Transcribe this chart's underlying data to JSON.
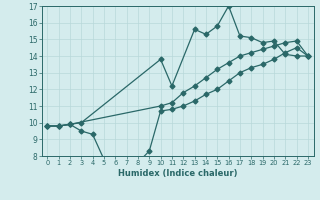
{
  "xlabel": "Humidex (Indice chaleur)",
  "bg_color": "#d4eced",
  "grid_color": "#b8d8da",
  "line_color": "#2a6868",
  "xlim": [
    -0.5,
    23.5
  ],
  "ylim": [
    8,
    17
  ],
  "xticks": [
    0,
    1,
    2,
    3,
    4,
    5,
    6,
    7,
    8,
    9,
    10,
    11,
    12,
    13,
    14,
    15,
    16,
    17,
    18,
    19,
    20,
    21,
    22,
    23
  ],
  "yticks": [
    8,
    9,
    10,
    11,
    12,
    13,
    14,
    15,
    16,
    17
  ],
  "line1_x": [
    0,
    1,
    2,
    3,
    10,
    11,
    13,
    14,
    15,
    16,
    17,
    18,
    19,
    20,
    21,
    22,
    23
  ],
  "line1_y": [
    9.8,
    9.8,
    9.9,
    10.0,
    13.8,
    12.2,
    15.6,
    15.3,
    15.8,
    17.0,
    15.2,
    15.1,
    14.8,
    14.9,
    14.1,
    14.0,
    14.0
  ],
  "line2_x": [
    0,
    1,
    2,
    10,
    11,
    12,
    13,
    14,
    15,
    16,
    17,
    18,
    19,
    20,
    21,
    22,
    23
  ],
  "line2_y": [
    9.8,
    9.8,
    9.9,
    11.0,
    11.2,
    11.8,
    12.2,
    12.7,
    13.2,
    13.6,
    14.0,
    14.2,
    14.4,
    14.6,
    14.8,
    14.9,
    14.0
  ],
  "line3_x": [
    0,
    1,
    2,
    3,
    4,
    5,
    6,
    7,
    8,
    9,
    10,
    11,
    12,
    13,
    14,
    15,
    16,
    17,
    18,
    19,
    20,
    21,
    22,
    23
  ],
  "line3_y": [
    9.8,
    9.8,
    9.9,
    9.5,
    9.3,
    7.8,
    7.5,
    7.5,
    7.6,
    8.3,
    10.7,
    10.8,
    11.0,
    11.3,
    11.7,
    12.0,
    12.5,
    13.0,
    13.3,
    13.5,
    13.8,
    14.2,
    14.5,
    14.0
  ]
}
